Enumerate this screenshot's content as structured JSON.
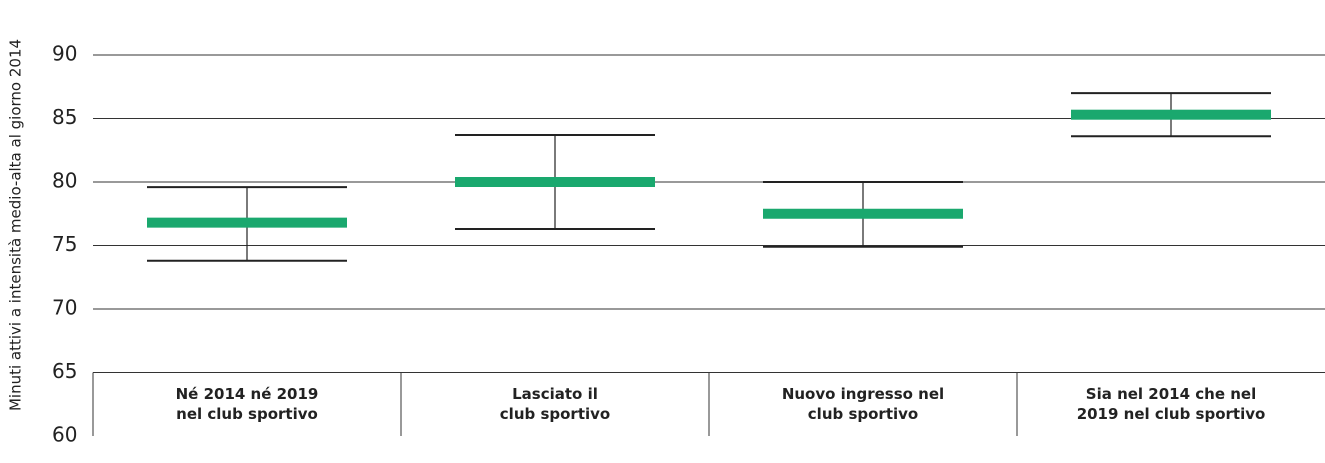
{
  "chart_data": {
    "type": "errorbar",
    "y_label": "Minuti attivi a intensità medio-alta al giorno 2014",
    "categories": [
      [
        "Né 2014 né 2019",
        "nel club sportivo"
      ],
      [
        "Lasciato il",
        "club sportivo"
      ],
      [
        "Nuovo ingresso nel",
        "club sportivo"
      ],
      [
        "Sia nel 2014 che nel",
        "2019 nel club sportivo"
      ]
    ],
    "values": [
      76.8,
      80.0,
      77.5,
      85.3
    ],
    "upper": [
      79.6,
      83.7,
      80.0,
      87.0
    ],
    "lower": [
      73.8,
      76.3,
      74.9,
      83.6
    ],
    "color": "#1aa86e",
    "whisker_color": "#222222",
    "ylim": [
      60,
      90
    ],
    "yticks": [
      60,
      65,
      70,
      75,
      80,
      85,
      90
    ],
    "grid": true
  }
}
